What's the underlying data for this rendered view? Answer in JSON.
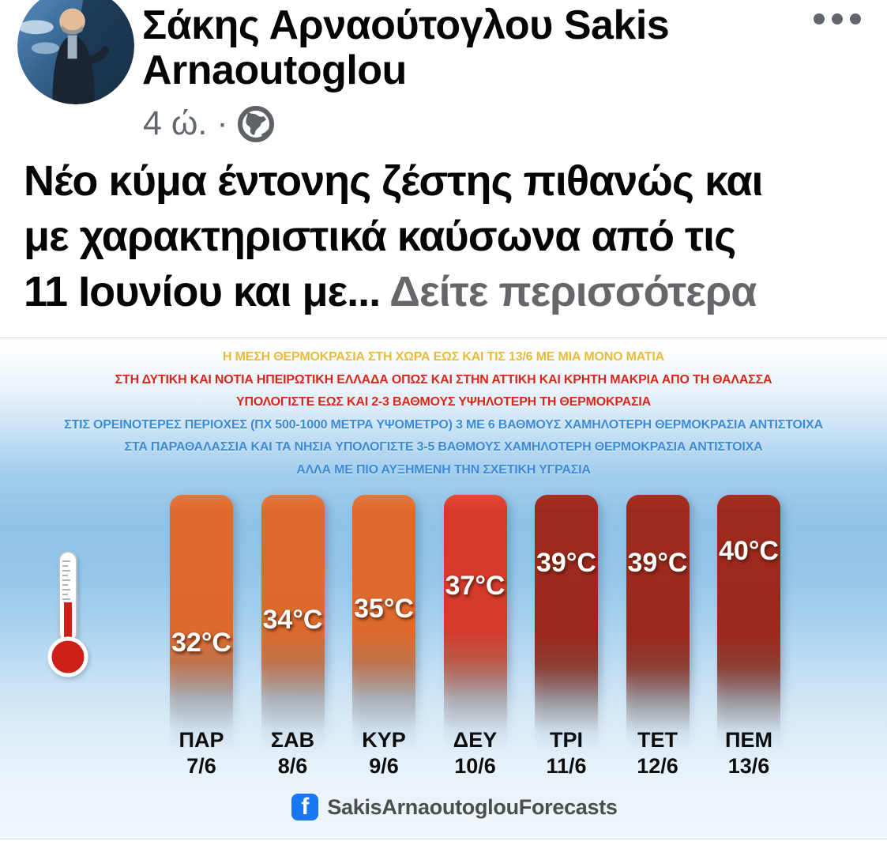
{
  "post": {
    "author": "Σάκης Αρναούτογλου Sakis Arnaoutoglou",
    "timestamp": "4 ώ.",
    "separator": "·",
    "audience": "public",
    "audience_icon": "globe-icon",
    "menu_icon": "ellipsis-icon",
    "text": "Νέο κύμα έντονης ζέστης πιθανώς και\nμε χαρακτηριστικά καύσωνα  από τις\n11 Ιουνίου και με... ",
    "see_more": "Δείτε περισσότερα"
  },
  "chart_data": {
    "type": "bar",
    "title_lines": [
      {
        "text": "Η ΜΕΣΗ ΘΕΡΜΟΚΡΑΣΙΑ ΣΤΗ ΧΩΡΑ ΕΩΣ ΚΑΙ ΤΙΣ 13/6 ΜΕ ΜΙΑ ΜΟΝΟ ΜΑΤΙΑ",
        "color": "#E9BB3A"
      },
      {
        "text": "ΣΤΗ ΔΥΤΙΚΗ ΚΑΙ ΝΟΤΙΑ ΗΠΕΙΡΩΤΙΚΗ ΕΛΛΑΔΑ ΟΠΩΣ ΚΑΙ ΣΤΗΝ ΑΤΤΙΚΗ ΚΑΙ ΚΡΗΤΗ ΜΑΚΡΙΑ ΑΠΟ ΤΗ ΘΑΛΑΣΣΑ",
        "color": "#D7271C"
      },
      {
        "text": "ΥΠΟΛΟΓΙΣΤΕ ΕΩΣ ΚΑΙ 2-3 ΒΑΘΜΟΥΣ ΥΨΗΛΟΤΕΡΗ ΤΗ ΘΕΡΜΟΚΡΑΣΙΑ",
        "color": "#D7271C"
      },
      {
        "text": "ΣΤΙΣ ΟΡΕΙΝΟΤΕΡΕΣ ΠΕΡΙΟΧΕΣ (ΠΧ 500-1000 ΜΕΤΡΑ ΥΨΟΜΕΤΡΟ) 3 ΜΕ 6 ΒΑΘΜΟΥΣ ΧΑΜΗΛΟΤΕΡΗ ΘΕΡΜΟΚΡΑΣΙΑ ΑΝΤΙΣΤΟΙΧΑ",
        "color": "#3B8AD8"
      },
      {
        "text": "ΣΤΑ ΠΑΡΑΘΑΛΑΣΣΙΑ ΚΑΙ ΤΑ ΝΗΣΙΑ ΥΠΟΛΟΓΙΣΤΕ 3-5 ΒΑΘΜΟΥΣ ΧΑΜΗΛΟΤΕΡΗ ΘΕΡΜΟΚΡΑΣΙΑ ΑΝΤΙΣΤΟΙΧΑ",
        "color": "#3B8AD8"
      },
      {
        "text": "ΑΛΛΑ ΜΕ ΠΙΟ ΑΥΞΗΜΕΝΗ ΤΗΝ ΣΧΕΤΙΚΗ ΥΓΡΑΣΙΑ",
        "color": "#3B8AD8"
      }
    ],
    "categories": [
      "ΠΑΡ",
      "ΣΑΒ",
      "ΚΥΡ",
      "ΔΕΥ",
      "ΤΡΙ",
      "ΤΕΤ",
      "ΠΕΜ"
    ],
    "dates": [
      "7/6",
      "8/6",
      "9/6",
      "10/6",
      "11/6",
      "12/6",
      "13/6"
    ],
    "values": [
      32,
      34,
      35,
      37,
      39,
      39,
      40
    ],
    "unit": "°C",
    "ylim": [
      32,
      40
    ],
    "bar_styles": [
      "orange",
      "orange",
      "orange",
      "red",
      "dark",
      "dark",
      "dark"
    ],
    "palette": {
      "orange": "#DE6B2E",
      "red": "#D63A2B",
      "dark": "#9C291E"
    },
    "legend_icon": "thermometer-icon",
    "footer": {
      "icon": "facebook-icon",
      "icon_letter": "f",
      "brand": "SakisArnaoutoglouForecasts"
    }
  },
  "colors": {
    "facebook_blue": "#1877F2",
    "text_primary": "#050505",
    "text_secondary": "#65676B"
  }
}
